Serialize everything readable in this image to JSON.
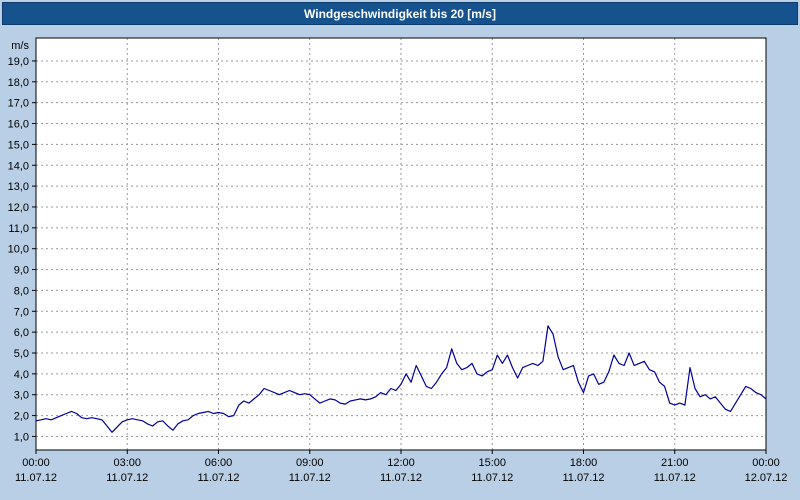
{
  "titlebar": {
    "title": "Windgeschwindigkeit bis 20 [m/s]"
  },
  "colors": {
    "page_bg": "#b9cfe5",
    "titlebar_bg": "#15528e",
    "titlebar_fg": "#ffffff",
    "plot_bg": "#ffffff",
    "grid": "#9a9a9a",
    "axis": "#000000",
    "text": "#000000",
    "line": "#000099"
  },
  "chart_data": {
    "type": "line",
    "title": "Windgeschwindigkeit bis 20 [m/s]",
    "unit_label": "m/s",
    "ylim": [
      0.35,
      20.1
    ],
    "xlim_hours": [
      0,
      24
    ],
    "grid": "dashed",
    "y_tick_values": [
      1,
      2,
      3,
      4,
      5,
      6,
      7,
      8,
      9,
      10,
      11,
      12,
      13,
      14,
      15,
      16,
      17,
      18,
      19
    ],
    "y_tick_labels": [
      "1,0",
      "2,0",
      "3,0",
      "4,0",
      "5,0",
      "6,0",
      "7,0",
      "8,0",
      "9,0",
      "10,0",
      "11,0",
      "12,0",
      "13,0",
      "14,0",
      "15,0",
      "16,0",
      "17,0",
      "18,0",
      "19,0"
    ],
    "x_ticks": [
      {
        "hour": 0,
        "time": "00:00",
        "date": "11.07.12"
      },
      {
        "hour": 3,
        "time": "03:00",
        "date": "11.07.12"
      },
      {
        "hour": 6,
        "time": "06:00",
        "date": "11.07.12"
      },
      {
        "hour": 9,
        "time": "09:00",
        "date": "11.07.12"
      },
      {
        "hour": 12,
        "time": "12:00",
        "date": "11.07.12"
      },
      {
        "hour": 15,
        "time": "15:00",
        "date": "11.07.12"
      },
      {
        "hour": 18,
        "time": "18:00",
        "date": "11.07.12"
      },
      {
        "hour": 21,
        "time": "21:00",
        "date": "11.07.12"
      },
      {
        "hour": 24,
        "time": "00:00",
        "date": "12.07.12"
      }
    ],
    "sample_step_minutes": 10,
    "series": [
      {
        "name": "Windgeschwindigkeit",
        "values": [
          1.75,
          1.8,
          1.85,
          1.8,
          1.9,
          2.0,
          2.1,
          2.2,
          2.1,
          1.9,
          1.85,
          1.9,
          1.85,
          1.8,
          1.5,
          1.2,
          1.45,
          1.7,
          1.8,
          1.85,
          1.8,
          1.75,
          1.6,
          1.5,
          1.7,
          1.75,
          1.5,
          1.3,
          1.6,
          1.75,
          1.8,
          2.0,
          2.1,
          2.15,
          2.2,
          2.1,
          2.15,
          2.1,
          1.95,
          2.0,
          2.5,
          2.7,
          2.6,
          2.8,
          3.0,
          3.3,
          3.2,
          3.1,
          3.0,
          3.1,
          3.2,
          3.1,
          3.0,
          3.05,
          3.0,
          2.8,
          2.6,
          2.7,
          2.8,
          2.75,
          2.6,
          2.55,
          2.7,
          2.75,
          2.8,
          2.75,
          2.8,
          2.9,
          3.1,
          3.0,
          3.3,
          3.2,
          3.5,
          4.0,
          3.6,
          4.4,
          3.9,
          3.4,
          3.3,
          3.6,
          4.0,
          4.3,
          5.2,
          4.5,
          4.2,
          4.3,
          4.5,
          4.0,
          3.9,
          4.1,
          4.2,
          4.9,
          4.5,
          4.9,
          4.3,
          3.8,
          4.3,
          4.4,
          4.5,
          4.4,
          4.6,
          6.3,
          5.9,
          4.8,
          4.2,
          4.3,
          4.4,
          3.6,
          3.1,
          3.9,
          4.0,
          3.5,
          3.6,
          4.1,
          4.9,
          4.5,
          4.4,
          5.0,
          4.4,
          4.5,
          4.6,
          4.2,
          4.1,
          3.6,
          3.4,
          2.6,
          2.5,
          2.6,
          2.5,
          4.3,
          3.3,
          2.9,
          3.0,
          2.8,
          2.9,
          2.6,
          2.3,
          2.2,
          2.6,
          3.0,
          3.4,
          3.3,
          3.1,
          3.0,
          2.8
        ]
      }
    ]
  }
}
